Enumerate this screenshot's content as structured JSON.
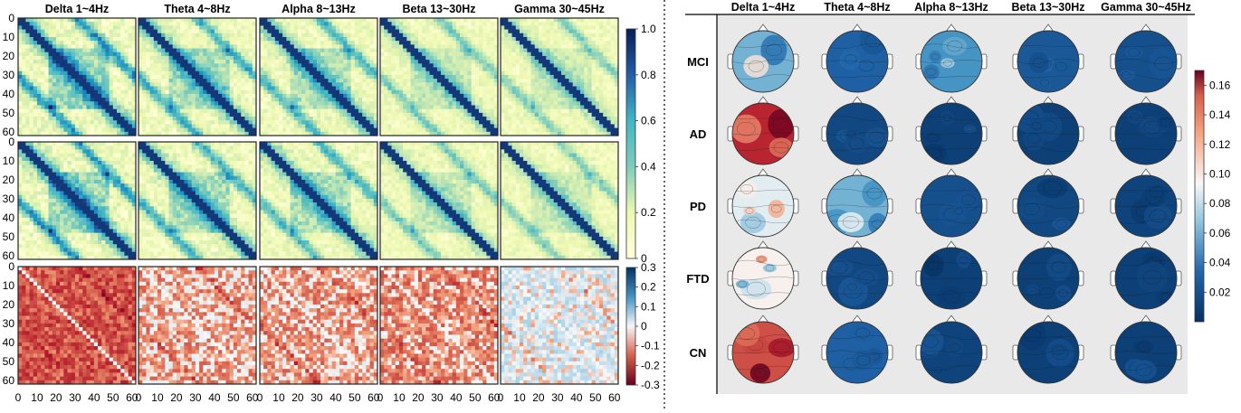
{
  "chart_data": [
    {
      "type": "heatmap",
      "panel": "connectivity-matrices",
      "bands": [
        "Delta 1~4Hz",
        "Theta 4~8Hz",
        "Alpha 8~13Hz",
        "Beta 13~30Hz",
        "Gamma 30~45Hz"
      ],
      "rows": 3,
      "y_ticks": [
        "0",
        "10",
        "20",
        "30",
        "40",
        "50",
        "60"
      ],
      "x_tick_groups": [
        [
          "0",
          "10",
          "20",
          "30",
          "40",
          "50",
          "60"
        ],
        [
          "0",
          "10",
          "20",
          "30",
          "40",
          "50",
          "60"
        ],
        [
          "0",
          "10",
          "20",
          "30",
          "40",
          "50",
          "60"
        ],
        [
          "0",
          "10",
          "20",
          "30",
          "40",
          "50",
          "60"
        ],
        [
          "0",
          "10",
          "20",
          "30",
          "40",
          "50",
          "60"
        ]
      ],
      "axis_range": [
        0,
        62
      ],
      "colorbar_top": {
        "ticks": [
          "1.0",
          "0.8",
          "0.6",
          "0.4",
          "0.2",
          "0"
        ],
        "range": [
          0,
          1.0
        ],
        "colormap": "YlGnBu"
      },
      "colorbar_diff": {
        "ticks": [
          "0.3",
          "0.2",
          "0.1",
          "0",
          "-0.1",
          "-0.2",
          "-0.3"
        ],
        "range": [
          -0.3,
          0.3
        ],
        "colormap": "RdBu"
      }
    },
    {
      "type": "heatmap",
      "panel": "topographic-maps",
      "bands": [
        "Delta 1~4Hz",
        "Theta 4~8Hz",
        "Alpha 8~13Hz",
        "Beta 13~30Hz",
        "Gamma 30~45Hz"
      ],
      "groups": [
        "MCI",
        "AD",
        "PD",
        "FTD",
        "CN"
      ],
      "colorbar": {
        "ticks": [
          "0.16",
          "0.14",
          "0.12",
          "0.10",
          "0.08",
          "0.06",
          "0.04",
          "0.02"
        ],
        "range": [
          0.0,
          0.17
        ],
        "colormap": "RdBu_r"
      },
      "level_estimates": [
        [
          0.07,
          0.03,
          0.06,
          0.025,
          0.02
        ],
        [
          0.15,
          0.015,
          0.01,
          0.01,
          0.01
        ],
        [
          0.09,
          0.07,
          0.02,
          0.015,
          0.012
        ],
        [
          0.095,
          0.015,
          0.01,
          0.01,
          0.01
        ],
        [
          0.14,
          0.03,
          0.012,
          0.01,
          0.01
        ]
      ]
    }
  ]
}
